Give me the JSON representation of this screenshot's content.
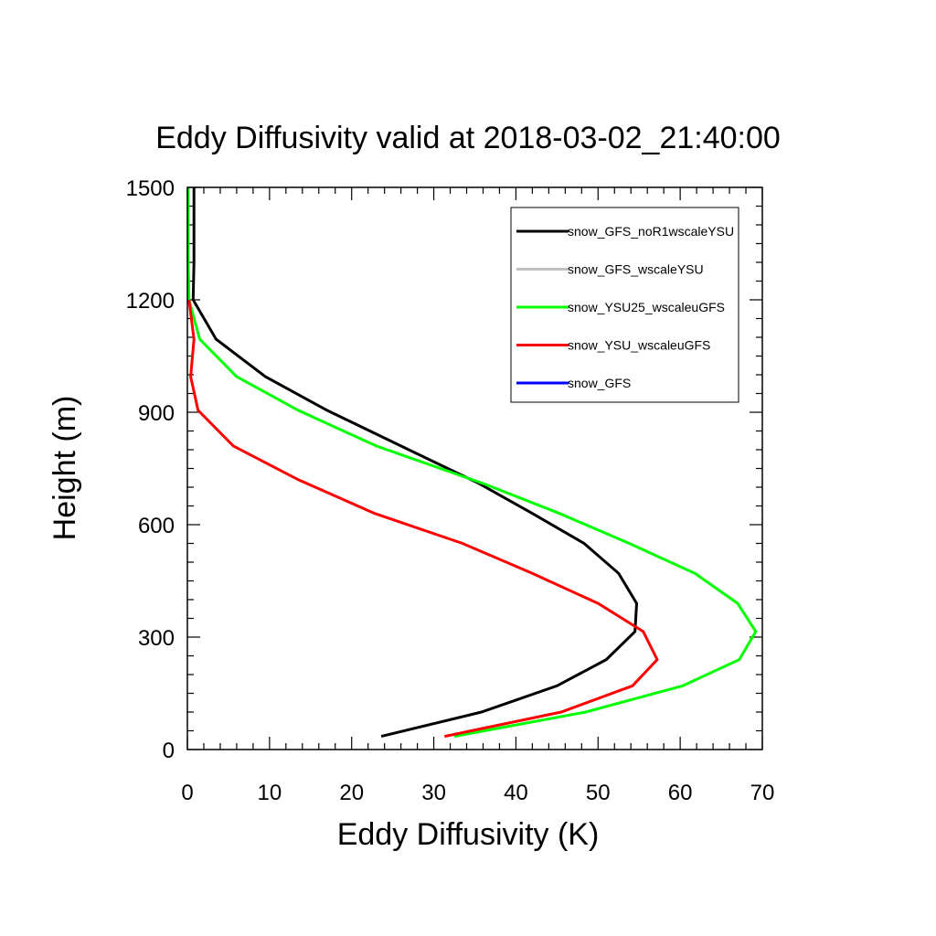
{
  "chart_data": {
    "type": "line",
    "title": "Eddy Diffusivity valid at 2018-03-02_21:40:00",
    "xlabel": "Eddy Diffusivity (K)",
    "ylabel": "Height (m)",
    "xlim": [
      0,
      70
    ],
    "ylim": [
      0,
      1500
    ],
    "xticks": [
      0,
      10,
      20,
      30,
      40,
      50,
      60,
      70
    ],
    "yticks": [
      0,
      300,
      600,
      900,
      1200,
      1500
    ],
    "x_minor_step": 2,
    "y_minor_step": 50,
    "grid": false,
    "legend_position": "top-right",
    "series": [
      {
        "name": "snow_GFS_noR1wscaleYSU",
        "color": "#000000",
        "points": [
          [
            23.6,
            35
          ],
          [
            35.8,
            100
          ],
          [
            45,
            170
          ],
          [
            51,
            240
          ],
          [
            54.5,
            315
          ],
          [
            54.7,
            390
          ],
          [
            52.5,
            470
          ],
          [
            48.3,
            550
          ],
          [
            42,
            630
          ],
          [
            35.5,
            710
          ],
          [
            26,
            810
          ],
          [
            17,
            905
          ],
          [
            9.5,
            995
          ],
          [
            3.5,
            1095
          ],
          [
            0.7,
            1200
          ],
          [
            0.8,
            1300
          ],
          [
            0.8,
            1400
          ],
          [
            0.8,
            1500
          ]
        ]
      },
      {
        "name": "snow_GFS_wscaleYSU",
        "color": "#bfbfbf",
        "points": []
      },
      {
        "name": "snow_YSU25_wscaleuGFS",
        "color": "#00ff00",
        "points": [
          [
            32.5,
            35
          ],
          [
            48.5,
            100
          ],
          [
            60.3,
            170
          ],
          [
            67.2,
            240
          ],
          [
            69.2,
            315
          ],
          [
            67,
            390
          ],
          [
            61.8,
            470
          ],
          [
            53.8,
            550
          ],
          [
            45.3,
            630
          ],
          [
            36,
            710
          ],
          [
            23,
            810
          ],
          [
            13.5,
            905
          ],
          [
            6,
            995
          ],
          [
            1.5,
            1095
          ],
          [
            0.2,
            1200
          ],
          [
            0.1,
            1300
          ],
          [
            0.1,
            1400
          ],
          [
            0.1,
            1500
          ]
        ]
      },
      {
        "name": "snow_YSU_wscaleuGFS",
        "color": "#ff0000",
        "points": [
          [
            31.3,
            35
          ],
          [
            45.5,
            100
          ],
          [
            54.2,
            170
          ],
          [
            57.2,
            240
          ],
          [
            55.5,
            315
          ],
          [
            50,
            390
          ],
          [
            42,
            470
          ],
          [
            33.5,
            550
          ],
          [
            22.8,
            630
          ],
          [
            13.5,
            720
          ],
          [
            5.6,
            810
          ],
          [
            1.3,
            905
          ],
          [
            0.4,
            995
          ],
          [
            0.8,
            1095
          ],
          [
            0.2,
            1200
          ]
        ]
      },
      {
        "name": "snow_GFS",
        "color": "#0000ff",
        "points": []
      }
    ]
  }
}
